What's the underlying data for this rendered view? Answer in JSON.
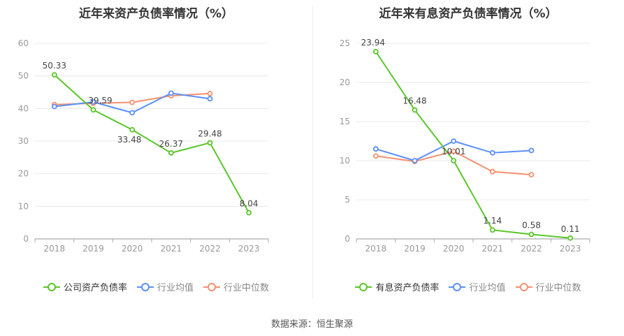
{
  "source": "数据来源：恒生聚源",
  "colors": {
    "company": "#5ac629",
    "industry_avg": "#5b8ff9",
    "industry_median": "#f6906f",
    "grid": "#e8e8e8",
    "axis": "#999999"
  },
  "chart_data": [
    {
      "type": "line",
      "title": "近年来资产负债率情况（%）",
      "x": [
        "2018",
        "2019",
        "2020",
        "2021",
        "2022",
        "2023"
      ],
      "ylim": [
        0,
        60
      ],
      "yticks": [
        0,
        10,
        20,
        30,
        40,
        50,
        60
      ],
      "series": [
        {
          "name": "公司资产负债率",
          "values": [
            50.33,
            39.59,
            33.48,
            26.37,
            29.48,
            8.04
          ],
          "labels": [
            "50.33",
            "39.59",
            "33.48",
            "26.37",
            "29.48",
            "8.04"
          ]
        },
        {
          "name": "行业均值",
          "values": [
            40.6,
            42.0,
            38.7,
            44.7,
            43.0,
            null
          ]
        },
        {
          "name": "行业中位数",
          "values": [
            41.2,
            41.6,
            41.9,
            43.9,
            44.6,
            null
          ]
        }
      ],
      "legend": "bottom",
      "grid": true
    },
    {
      "type": "line",
      "title": "近年来有息资产负债率情况（%）",
      "x": [
        "2018",
        "2019",
        "2020",
        "2021",
        "2022",
        "2023"
      ],
      "ylim": [
        0,
        25
      ],
      "yticks": [
        0,
        5,
        10,
        15,
        20,
        25
      ],
      "series": [
        {
          "name": "有息资产负债率",
          "values": [
            23.94,
            16.48,
            10.01,
            1.14,
            0.58,
            0.11
          ],
          "labels": [
            "23.94",
            "16.48",
            "10.01",
            "1.14",
            "0.58",
            "0.11"
          ]
        },
        {
          "name": "行业均值",
          "values": [
            11.5,
            10.0,
            12.5,
            11.0,
            11.3,
            null
          ]
        },
        {
          "name": "行业中位数",
          "values": [
            10.6,
            9.9,
            11.2,
            8.6,
            8.2,
            null
          ]
        }
      ],
      "legend": "bottom",
      "grid": true
    }
  ]
}
